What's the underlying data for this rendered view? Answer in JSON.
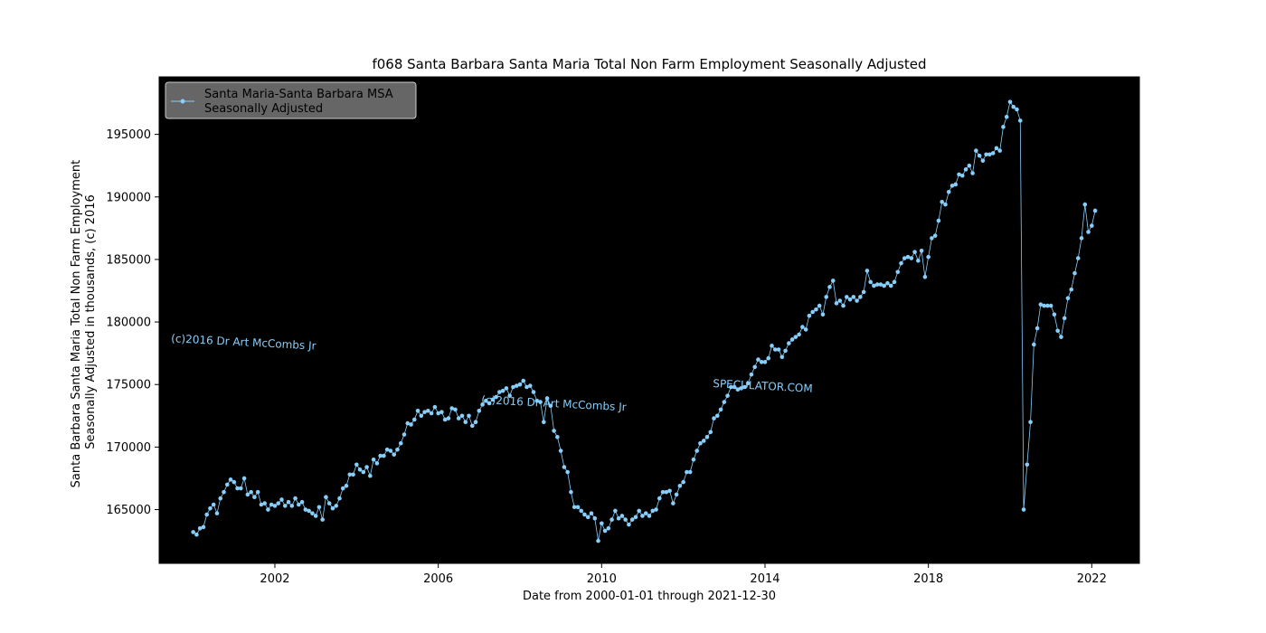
{
  "chart_data": {
    "type": "line",
    "title": "f068 Santa Barbara Santa Maria Total Non Farm Employment Seasonally Adjusted",
    "xlabel": "Date from 2000-01-01 through 2021-12-30",
    "ylabel_lines": [
      "Santa Barbara Santa Maria Total Non Farm Employment",
      "Seasonally Adjusted in thousands, (c) 2016"
    ],
    "xlim": [
      "1999-03-01",
      "2023-03-01"
    ],
    "ylim": [
      160700,
      199600
    ],
    "x_ticks": [
      "2002",
      "2006",
      "2010",
      "2014",
      "2018",
      "2022"
    ],
    "y_ticks": [
      165000,
      170000,
      175000,
      180000,
      185000,
      190000,
      195000
    ],
    "y_tick_labels": [
      "165000",
      "170000",
      "175000",
      "180000",
      "185000",
      "190000",
      "195000"
    ],
    "grid": false,
    "background": "#000000",
    "series": [
      {
        "name": "Santa Maria-Santa Barbara MSA\nSeasonally Adjusted",
        "color": "#87cefa",
        "start": "2000-01",
        "values": [
          163200,
          163000,
          163500,
          163600,
          164600,
          165100,
          165400,
          164700,
          165900,
          166400,
          167000,
          167400,
          167200,
          166700,
          166700,
          167500,
          166200,
          166400,
          166000,
          166400,
          165400,
          165500,
          165000,
          165400,
          165300,
          165500,
          165800,
          165300,
          165600,
          165300,
          165900,
          165400,
          165600,
          165000,
          164900,
          164700,
          164500,
          165200,
          164200,
          166000,
          165500,
          165100,
          165300,
          165900,
          166700,
          166900,
          167800,
          167800,
          168600,
          168200,
          168000,
          168400,
          167700,
          169000,
          168700,
          169300,
          169300,
          169800,
          169700,
          169400,
          169800,
          170300,
          171000,
          171900,
          171800,
          172200,
          172900,
          172500,
          172800,
          172900,
          172700,
          173200,
          172700,
          172800,
          172200,
          172300,
          173100,
          173000,
          172300,
          172500,
          172000,
          172500,
          171700,
          172000,
          172900,
          173400,
          173700,
          173500,
          173800,
          174000,
          174400,
          174500,
          174700,
          174100,
          174800,
          174900,
          175000,
          175300,
          174800,
          174900,
          174400,
          173700,
          173600,
          172000,
          173900,
          173300,
          171300,
          170800,
          169700,
          168400,
          168000,
          166400,
          165200,
          165200,
          164900,
          164600,
          164400,
          164700,
          164300,
          162500,
          163900,
          163300,
          163500,
          164200,
          164900,
          164300,
          164500,
          164200,
          163800,
          164200,
          164400,
          164900,
          164500,
          164700,
          164500,
          164900,
          165000,
          165900,
          166400,
          166400,
          166500,
          165500,
          166200,
          166900,
          167200,
          168000,
          168000,
          169000,
          169700,
          170300,
          170500,
          170800,
          171200,
          172300,
          172500,
          173000,
          173600,
          174100,
          174800,
          174800,
          174600,
          174700,
          174800,
          175100,
          175800,
          176400,
          177000,
          176800,
          176800,
          177100,
          178100,
          177800,
          177800,
          177200,
          177700,
          178300,
          178600,
          178800,
          179000,
          179600,
          179400,
          180500,
          180800,
          181000,
          181300,
          180600,
          182000,
          182800,
          183300,
          181500,
          181700,
          181300,
          182000,
          181800,
          182000,
          181700,
          182000,
          182400,
          184100,
          183200,
          182900,
          183000,
          183000,
          182900,
          183100,
          182900,
          183200,
          184000,
          184700,
          185100,
          185200,
          185100,
          185600,
          184900,
          185700,
          183600,
          185200,
          186700,
          186900,
          188100,
          189600,
          189400,
          190400,
          190900,
          191000,
          191800,
          191700,
          192200,
          192500,
          191900,
          193700,
          193300,
          192900,
          193400,
          193400,
          193500,
          193900,
          193700,
          195600,
          196400,
          197600,
          197200,
          197000,
          196100,
          165000,
          168600,
          172000,
          178200,
          179500,
          181400,
          181300,
          181300,
          181300,
          180600,
          179300,
          178800,
          180300,
          181900,
          182600,
          183900,
          185100,
          186700,
          189400,
          187200,
          187700,
          188900
        ]
      }
    ],
    "annotations": [
      {
        "text": "(c)2016 Dr Art McCombs Jr",
        "x": "1999-06-15",
        "y": 178400,
        "rotation": 3
      },
      {
        "text": "(c)2016 Dr Art McCombs Jr",
        "x": "2007-01-20",
        "y": 173500,
        "rotation": 3
      },
      {
        "text": "SPECULATOR.COM",
        "x": "2012-09-20",
        "y": 174800,
        "rotation": 3
      }
    ],
    "legend_location": "top-left"
  }
}
